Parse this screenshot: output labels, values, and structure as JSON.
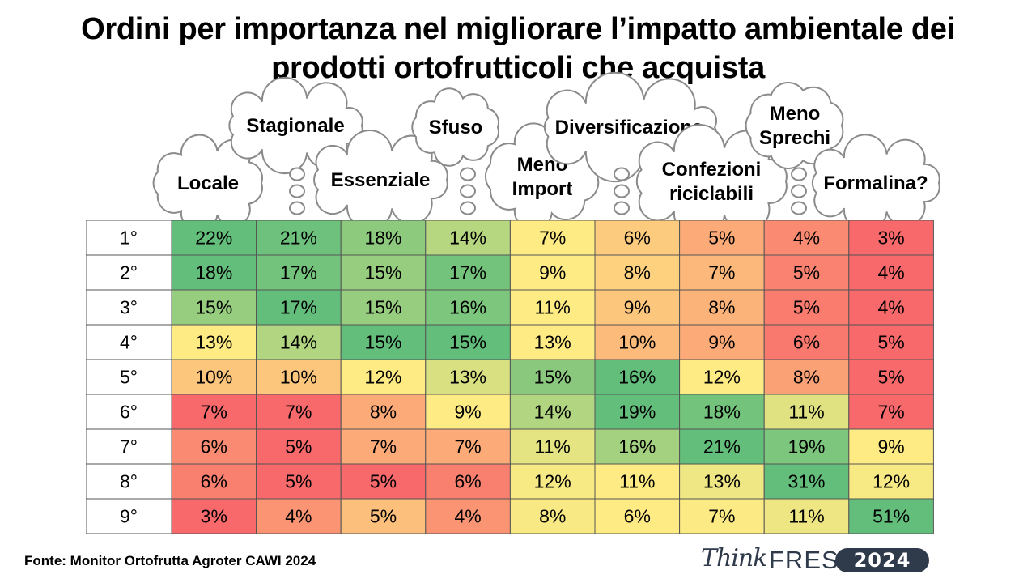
{
  "title": {
    "line1": "Ordini per importanza nel migliorare l’impatto ambientale dei",
    "line2": "prodotti ortofrutticoli che acquista"
  },
  "source": "Fonte: Monitor Ortofrutta Agroter CAWI 2024",
  "logo": {
    "think": "Think",
    "fresh": "FRESH",
    "year": "2024"
  },
  "chart_data": {
    "type": "heatmap",
    "title": "Ordini per importanza nel migliorare l’impatto ambientale dei prodotti ortofrutticoli che acquista",
    "columns": [
      [
        "Locale"
      ],
      [
        "Stagionale"
      ],
      [
        "Essenziale"
      ],
      [
        "Sfuso"
      ],
      [
        "Meno",
        "Import"
      ],
      [
        "Diversificazione"
      ],
      [
        "Confezioni",
        "riciclabili"
      ],
      [
        "Meno",
        "Sprechi"
      ],
      [
        "Formalina?"
      ]
    ],
    "rows": [
      "1°",
      "2°",
      "3°",
      "4°",
      "5°",
      "6°",
      "7°",
      "8°",
      "9°"
    ],
    "values": [
      [
        22,
        21,
        18,
        14,
        7,
        6,
        5,
        4,
        3
      ],
      [
        18,
        17,
        15,
        17,
        9,
        8,
        7,
        5,
        4
      ],
      [
        15,
        17,
        15,
        16,
        11,
        9,
        8,
        5,
        4
      ],
      [
        13,
        14,
        15,
        15,
        13,
        10,
        9,
        6,
        5
      ],
      [
        10,
        10,
        12,
        13,
        15,
        16,
        12,
        8,
        5
      ],
      [
        7,
        7,
        8,
        9,
        14,
        19,
        18,
        11,
        7
      ],
      [
        6,
        5,
        7,
        7,
        11,
        16,
        21,
        19,
        9
      ],
      [
        6,
        5,
        5,
        6,
        12,
        11,
        13,
        31,
        12
      ],
      [
        3,
        4,
        5,
        4,
        8,
        6,
        7,
        11,
        51
      ]
    ],
    "unit": "%",
    "colorscale": {
      "low": "#f8696b",
      "mid": "#ffeb84",
      "high": "#63be7b"
    }
  }
}
